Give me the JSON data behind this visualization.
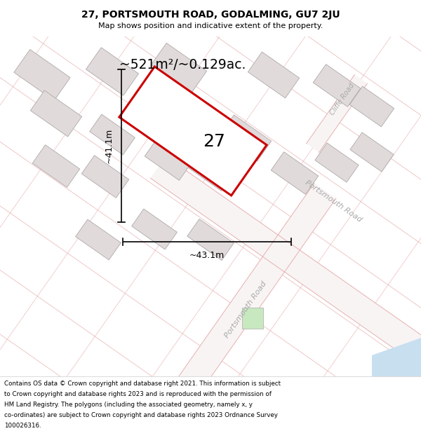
{
  "title_line1": "27, PORTSMOUTH ROAD, GODALMING, GU7 2JU",
  "title_line2": "Map shows position and indicative extent of the property.",
  "area_label": "~521m²/~0.129ac.",
  "number_label": "27",
  "dim_height": "~41.1m",
  "dim_width": "~43.1m",
  "road_label_bottom": "Portsmouth Road",
  "road_label_right": "Portsmouth Road",
  "road_label_cliffe": "Cliffe Road",
  "footer_text": "Contains OS data © Crown copyright and database right 2021. This information is subject to Crown copyright and database rights 2023 and is reproduced with the permission of HM Land Registry. The polygons (including the associated geometry, namely x, y co-ordinates) are subject to Crown copyright and database rights 2023 Ordnance Survey 100026316.",
  "map_bg": "#f7f2f2",
  "property_color": "#cc0000",
  "property_fill": "white",
  "block_color": "#e0dada",
  "block_edge": "#b0a8a8",
  "road_fill_color": "#f5eeee",
  "road_line_color": "#e8b0b0",
  "road_stripe_color": "#e0c0c0",
  "dim_color": "#111111",
  "road_label_color": "#aaaaaa",
  "cliffe_road_color": "#bbbbbb"
}
